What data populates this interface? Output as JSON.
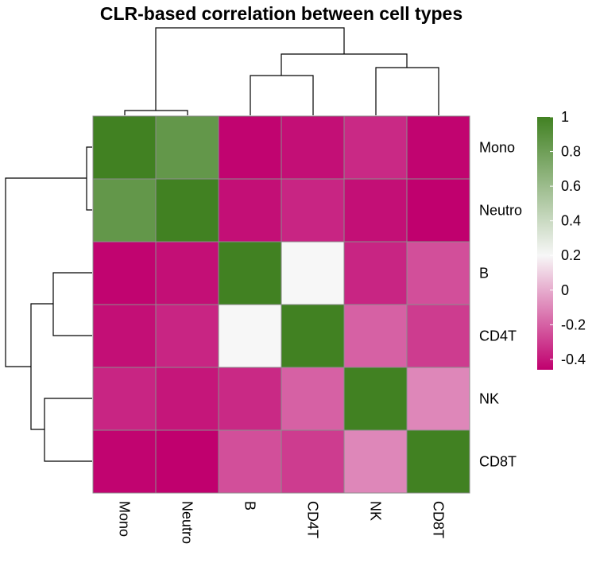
{
  "chart_data": {
    "type": "heatmap",
    "title": "CLR-based correlation between cell types",
    "rows": [
      "Mono",
      "Neutro",
      "B",
      "CD4T",
      "NK",
      "CD8T"
    ],
    "columns": [
      "Mono",
      "Neutro",
      "B",
      "CD4T",
      "NK",
      "CD8T"
    ],
    "values": [
      [
        1.0,
        0.85,
        -0.45,
        -0.42,
        -0.35,
        -0.45
      ],
      [
        0.85,
        1.0,
        -0.42,
        -0.36,
        -0.42,
        -0.46
      ],
      [
        -0.45,
        -0.42,
        1.0,
        0.2,
        -0.36,
        -0.25
      ],
      [
        -0.42,
        -0.36,
        0.2,
        1.0,
        -0.2,
        -0.3
      ],
      [
        -0.36,
        -0.4,
        -0.35,
        -0.2,
        1.0,
        -0.1
      ],
      [
        -0.45,
        -0.46,
        -0.25,
        -0.3,
        -0.1,
        1.0
      ]
    ],
    "color_scale": {
      "min": -0.46,
      "max": 1.0,
      "stops": [
        {
          "value": -0.46,
          "color": "#c0006e"
        },
        {
          "value": 0.2,
          "color": "#f7f7f7"
        },
        {
          "value": 1.0,
          "color": "#418122"
        }
      ],
      "ticks": [
        "1",
        "0.8",
        "0.6",
        "0.4",
        "0.2",
        "0",
        "-0.2",
        "-0.4"
      ],
      "tick_values": [
        1,
        0.8,
        0.6,
        0.4,
        0.2,
        0,
        -0.2,
        -0.4
      ]
    },
    "cluster_order": [
      "Mono",
      "Neutro",
      "B",
      "CD4T",
      "NK",
      "CD8T"
    ],
    "grid": true,
    "legend_position": "right"
  },
  "colors": {
    "cell_border": "#8c8c8c",
    "dendrogram": "#000000"
  }
}
